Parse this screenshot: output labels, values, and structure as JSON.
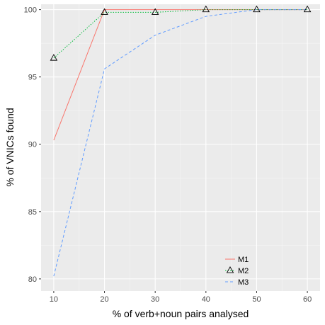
{
  "chart_data": {
    "type": "line",
    "title": "",
    "xlabel": "% of verb+noun pairs analysed",
    "ylabel": "% of VNICs found",
    "x": [
      10,
      20,
      30,
      40,
      50,
      60
    ],
    "xlim": [
      7.5,
      62.5
    ],
    "ylim": [
      79.1,
      100.4
    ],
    "xticks": [
      10,
      20,
      30,
      40,
      50,
      60
    ],
    "yticks": [
      80,
      85,
      90,
      95,
      100
    ],
    "grid": true,
    "legend_position": "bottom-center",
    "series": [
      {
        "name": "M1",
        "values": [
          90.3,
          100.0,
          100.0,
          100.0,
          100.0,
          100.0
        ],
        "color": "#F8766D",
        "dash": "solid",
        "marker": "none"
      },
      {
        "name": "M2",
        "values": [
          96.4,
          99.8,
          99.8,
          100.0,
          100.0,
          100.0
        ],
        "color": "#00BA38",
        "dash": "dotted",
        "marker": "triangle"
      },
      {
        "name": "M3",
        "values": [
          80.2,
          95.6,
          98.1,
          99.5,
          100.0,
          100.0
        ],
        "color": "#619CFF",
        "dash": "dashed",
        "marker": "none"
      }
    ]
  }
}
